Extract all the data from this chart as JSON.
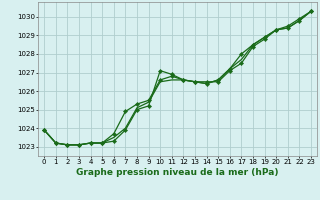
{
  "background_color": "#d8f0f0",
  "grid_color": "#b0cece",
  "line_color": "#1a6b1a",
  "marker_color": "#1a6b1a",
  "xlim": [
    -0.5,
    23.5
  ],
  "ylim": [
    1022.5,
    1030.8
  ],
  "yticks": [
    1023,
    1024,
    1025,
    1026,
    1027,
    1028,
    1029,
    1030
  ],
  "xticks": [
    0,
    1,
    2,
    3,
    4,
    5,
    6,
    7,
    8,
    9,
    10,
    11,
    12,
    13,
    14,
    15,
    16,
    17,
    18,
    19,
    20,
    21,
    22,
    23
  ],
  "series": [
    [
      1023.9,
      1023.2,
      1023.1,
      1023.1,
      1023.2,
      1023.2,
      1023.3,
      1023.9,
      1025.0,
      1025.2,
      1027.1,
      1026.9,
      1026.6,
      1026.5,
      1026.5,
      1026.5,
      1027.1,
      1027.5,
      1028.4,
      1028.8,
      1029.3,
      1029.4,
      1029.8,
      1030.3
    ],
    [
      1023.9,
      1023.2,
      1023.1,
      1023.1,
      1023.2,
      1023.2,
      1023.5,
      1024.0,
      1025.1,
      1025.4,
      1026.5,
      1026.6,
      1026.6,
      1026.5,
      1026.4,
      1026.6,
      1027.2,
      1027.7,
      1028.5,
      1028.9,
      1029.3,
      1029.4,
      1029.8,
      1030.3
    ],
    [
      1023.9,
      1023.2,
      1023.1,
      1023.1,
      1023.2,
      1023.2,
      1023.7,
      1024.9,
      1025.3,
      1025.5,
      1026.6,
      1026.8,
      1026.6,
      1026.5,
      1026.4,
      1026.6,
      1027.2,
      1028.0,
      1028.5,
      1028.9,
      1029.3,
      1029.5,
      1029.9,
      1030.3
    ]
  ],
  "xlabel": "Graphe pression niveau de la mer (hPa)",
  "xlabel_color": "#1a6b1a",
  "xlabel_fontsize": 6.5,
  "tick_fontsize": 5,
  "linewidth": 0.9,
  "markersize": 2.2
}
